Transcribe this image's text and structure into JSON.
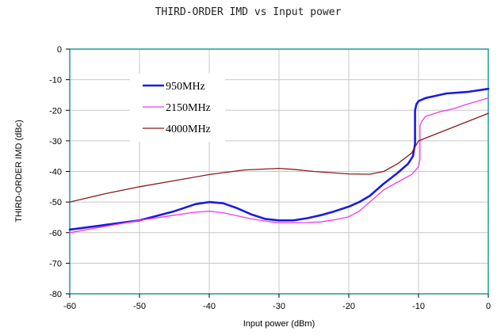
{
  "chart_data": {
    "type": "line",
    "title": "THIRD-ORDER IMD vs Input power",
    "xlabel": "Input power (dBm)",
    "ylabel": "THIRD-ORDER IMD (dBc)",
    "xlim": [
      -60,
      0
    ],
    "ylim": [
      -80,
      0
    ],
    "xticks": [
      -60,
      -50,
      -40,
      -30,
      -20,
      -10,
      0
    ],
    "yticks": [
      0,
      -10,
      -20,
      -30,
      -40,
      -50,
      -60,
      -70,
      -80
    ],
    "grid": true,
    "legend_position": "upper-left inside plot",
    "colors": {
      "plot_border": "#1a9a9a",
      "grid": "#c8c8c8"
    },
    "series": [
      {
        "name": "950MHz",
        "color": "#1a1ae6",
        "x": [
          -60,
          -55,
          -50,
          -45,
          -42,
          -40,
          -38,
          -36,
          -34,
          -32,
          -30,
          -28,
          -26,
          -24,
          -22,
          -20,
          -18.5,
          -17,
          -15,
          -13,
          -11.5,
          -10.8,
          -10.5,
          -10.5,
          -10.3,
          -10,
          -9,
          -8,
          -6,
          -3,
          0
        ],
        "y": [
          -59,
          -57.5,
          -56,
          -53,
          -50.7,
          -50,
          -50.4,
          -52,
          -54,
          -55.5,
          -56,
          -56,
          -55.3,
          -54.3,
          -53,
          -51.5,
          -50,
          -48,
          -44,
          -40.5,
          -37.5,
          -35,
          -31,
          -20,
          -18,
          -17,
          -16,
          -15.5,
          -14.5,
          -14,
          -13
        ]
      },
      {
        "name": "2150MHz",
        "color": "#ee3bee",
        "x": [
          -60,
          -55,
          -50,
          -45,
          -42,
          -40,
          -38,
          -36,
          -34,
          -32,
          -30,
          -28,
          -26,
          -24,
          -22,
          -20,
          -18.5,
          -17,
          -15,
          -13,
          -11,
          -10,
          -9.8,
          -9.8,
          -9.5,
          -9,
          -7,
          -5,
          -3,
          0
        ],
        "y": [
          -60,
          -58,
          -56,
          -54.3,
          -53.3,
          -53,
          -53.5,
          -54.5,
          -55.5,
          -56.2,
          -56.8,
          -56.8,
          -56.7,
          -56.5,
          -55.8,
          -54.8,
          -53,
          -50,
          -46,
          -43.5,
          -41,
          -38.5,
          -36,
          -25,
          -23.5,
          -22,
          -20.5,
          -19.5,
          -18,
          -16
        ]
      },
      {
        "name": "4000MHz",
        "color": "#8b1a1a",
        "x": [
          -60,
          -55,
          -50,
          -45,
          -40,
          -35,
          -30,
          -28,
          -25,
          -20,
          -17,
          -15,
          -13,
          -11,
          -10,
          -5,
          0
        ],
        "y": [
          -50,
          -47.3,
          -45,
          -43,
          -41,
          -39.5,
          -39,
          -39.3,
          -40,
          -40.8,
          -40.9,
          -40,
          -37.5,
          -34,
          -30,
          -25.5,
          -21
        ]
      }
    ]
  }
}
